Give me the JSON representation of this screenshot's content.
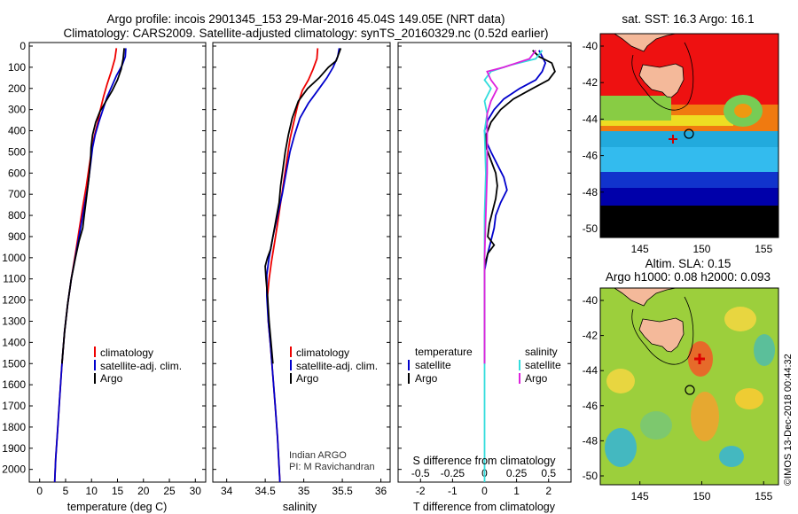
{
  "header": {
    "title_line1": "Argo profile: incois 2901345_153 29-Mar-2016 45.04S 149.05E (NRT data)",
    "title_line2": "Climatology: CARS2009. Satellite-adjusted climatology: synTS_20160329.nc (0.52d earlier)"
  },
  "colors": {
    "climatology": "#ee0000",
    "satellite": "#0000cc",
    "argo": "#000000",
    "satellite_salinity": "#33dddd",
    "argo_salinity_diff": "#dd22dd"
  },
  "panels": {
    "temperature": {
      "xlabel": "temperature (deg C)",
      "xticks": [
        "0",
        "5",
        "10",
        "15",
        "20",
        "25",
        "30"
      ],
      "legend": [
        "climatology",
        "satellite-adj. clim.",
        "Argo"
      ]
    },
    "salinity": {
      "xlabel": "salinity",
      "xticks": [
        "34",
        "34.5",
        "35",
        "35.5",
        "36"
      ],
      "legend": [
        "climatology",
        "satellite-adj. clim.",
        "Argo"
      ],
      "credit_line1": "Indian ARGO",
      "credit_line2": "PI: M Ravichandran"
    },
    "difference": {
      "xlabel": "T difference from climatology",
      "xlabel_top": "S difference from climatology",
      "xticks": [
        "-2",
        "-1",
        "0",
        "1",
        "2"
      ],
      "xticks_s": [
        "-0.5",
        "-0.25",
        "0",
        "0.25",
        "0.5"
      ],
      "legend_t_title": "temperature",
      "legend_t": [
        "satellite",
        "Argo"
      ],
      "legend_s_title": "salinity",
      "legend_s": [
        "satellite",
        "Argo"
      ]
    }
  },
  "y_axis": {
    "ticks": [
      "0",
      "100",
      "200",
      "300",
      "400",
      "500",
      "600",
      "700",
      "800",
      "900",
      "1000",
      "1100",
      "1200",
      "1300",
      "1400",
      "1500",
      "1600",
      "1700",
      "1800",
      "1900",
      "2000"
    ]
  },
  "maps": {
    "sst": {
      "title": "sat. SST: 16.3 Argo: 16.1",
      "yticks": [
        "-40",
        "-42",
        "-44",
        "-46",
        "-48",
        "-50"
      ],
      "xticks": [
        "145",
        "150",
        "155"
      ]
    },
    "sla": {
      "title_line1": "Altim. SLA: 0.15",
      "title_line2": "Argo h1000: 0.08 h2000: 0.093",
      "yticks": [
        "-40",
        "-42",
        "-44",
        "-46",
        "-48",
        "-50"
      ],
      "xticks": [
        "145",
        "150",
        "155"
      ]
    }
  },
  "watermark": "©IMOS 13-Dec-2018 00:44:32",
  "chart_data": [
    {
      "type": "line",
      "title": "",
      "xlabel": "temperature (deg C)",
      "ylabel": "",
      "xlim": [
        -2,
        32
      ],
      "ylim": [
        2060,
        0
      ],
      "series": [
        {
          "name": "climatology",
          "color": "#ee0000",
          "points": [
            [
              14.8,
              10
            ],
            [
              14.5,
              60
            ],
            [
              13.8,
              120
            ],
            [
              13.0,
              180
            ],
            [
              12.3,
              240
            ],
            [
              11.7,
              300
            ],
            [
              11.2,
              360
            ],
            [
              10.6,
              420
            ],
            [
              10.1,
              480
            ],
            [
              9.6,
              560
            ],
            [
              9.0,
              660
            ],
            [
              8.3,
              760
            ],
            [
              7.6,
              870
            ],
            [
              6.9,
              980
            ],
            [
              6.1,
              1100
            ],
            [
              5.4,
              1220
            ],
            [
              4.8,
              1350
            ],
            [
              4.3,
              1500
            ],
            [
              3.9,
              1650
            ],
            [
              3.5,
              1800
            ],
            [
              3.1,
              1950
            ],
            [
              2.9,
              2060
            ]
          ]
        },
        {
          "name": "satellite-adj. clim.",
          "color": "#0000cc",
          "points": [
            [
              16.6,
              10
            ],
            [
              16.5,
              50
            ],
            [
              15.9,
              90
            ],
            [
              14.8,
              140
            ],
            [
              13.9,
              190
            ],
            [
              13.0,
              240
            ],
            [
              12.2,
              300
            ],
            [
              11.4,
              360
            ],
            [
              10.7,
              420
            ],
            [
              10.2,
              480
            ],
            [
              9.8,
              560
            ],
            [
              9.3,
              660
            ],
            [
              8.6,
              760
            ],
            [
              7.8,
              870
            ],
            [
              7.0,
              980
            ],
            [
              6.1,
              1100
            ],
            [
              5.4,
              1220
            ],
            [
              4.8,
              1350
            ],
            [
              4.3,
              1500
            ],
            [
              3.9,
              1650
            ],
            [
              3.5,
              1800
            ],
            [
              3.1,
              1950
            ],
            [
              2.9,
              2060
            ]
          ]
        },
        {
          "name": "Argo",
          "color": "#000000",
          "points": [
            [
              16.3,
              10
            ],
            [
              16.1,
              60
            ],
            [
              15.7,
              110
            ],
            [
              15.0,
              160
            ],
            [
              14.0,
              210
            ],
            [
              12.8,
              260
            ],
            [
              11.6,
              310
            ],
            [
              10.8,
              360
            ],
            [
              10.2,
              420
            ],
            [
              9.9,
              480
            ],
            [
              9.8,
              540
            ],
            [
              9.5,
              620
            ],
            [
              9.0,
              720
            ],
            [
              8.6,
              800
            ],
            [
              8.3,
              860
            ],
            [
              7.6,
              920
            ],
            [
              6.9,
              1000
            ],
            [
              6.1,
              1100
            ],
            [
              5.4,
              1220
            ],
            [
              4.8,
              1350
            ],
            [
              4.3,
              1500
            ]
          ]
        }
      ]
    },
    {
      "type": "line",
      "title": "",
      "xlabel": "salinity",
      "ylabel": "",
      "xlim": [
        33.82,
        36.12
      ],
      "ylim": [
        2060,
        0
      ],
      "series": [
        {
          "name": "climatology",
          "color": "#ee0000",
          "points": [
            [
              35.18,
              10
            ],
            [
              35.17,
              60
            ],
            [
              35.12,
              110
            ],
            [
              35.06,
              160
            ],
            [
              34.98,
              210
            ],
            [
              34.92,
              280
            ],
            [
              34.87,
              360
            ],
            [
              34.82,
              440
            ],
            [
              34.78,
              540
            ],
            [
              34.74,
              640
            ],
            [
              34.7,
              740
            ],
            [
              34.66,
              840
            ],
            [
              34.62,
              930
            ],
            [
              34.58,
              1020
            ],
            [
              34.55,
              1100
            ],
            [
              34.53,
              1180
            ],
            [
              34.54,
              1300
            ],
            [
              34.57,
              1420
            ],
            [
              34.6,
              1560
            ],
            [
              34.63,
              1700
            ],
            [
              34.66,
              1850
            ],
            [
              34.69,
              2060
            ]
          ]
        },
        {
          "name": "satellite-adj. clim.",
          "color": "#0000cc",
          "points": [
            [
              35.46,
              10
            ],
            [
              35.44,
              50
            ],
            [
              35.38,
              100
            ],
            [
              35.3,
              150
            ],
            [
              35.18,
              210
            ],
            [
              35.06,
              270
            ],
            [
              34.95,
              340
            ],
            [
              34.88,
              420
            ],
            [
              34.82,
              500
            ],
            [
              34.77,
              600
            ],
            [
              34.72,
              700
            ],
            [
              34.66,
              800
            ],
            [
              34.6,
              900
            ],
            [
              34.55,
              1000
            ],
            [
              34.52,
              1080
            ],
            [
              34.52,
              1180
            ],
            [
              34.54,
              1300
            ],
            [
              34.57,
              1420
            ],
            [
              34.6,
              1560
            ],
            [
              34.63,
              1700
            ],
            [
              34.66,
              1850
            ],
            [
              34.69,
              2060
            ]
          ]
        },
        {
          "name": "Argo",
          "color": "#000000",
          "points": [
            [
              35.48,
              10
            ],
            [
              35.45,
              40
            ],
            [
              35.42,
              70
            ],
            [
              35.32,
              100
            ],
            [
              35.2,
              150
            ],
            [
              35.05,
              200
            ],
            [
              34.93,
              260
            ],
            [
              34.85,
              340
            ],
            [
              34.8,
              420
            ],
            [
              34.76,
              500
            ],
            [
              34.73,
              580
            ],
            [
              34.7,
              660
            ],
            [
              34.68,
              740
            ],
            [
              34.64,
              820
            ],
            [
              34.6,
              900
            ],
            [
              34.57,
              960
            ],
            [
              34.53,
              1000
            ],
            [
              34.5,
              1040
            ],
            [
              34.51,
              1100
            ],
            [
              34.53,
              1180
            ],
            [
              34.55,
              1300
            ],
            [
              34.58,
              1420
            ],
            [
              34.6,
              1500
            ]
          ]
        }
      ]
    },
    {
      "type": "line",
      "title": "",
      "xlabel": "T difference from climatology",
      "xlabel_top": "S difference from climatology",
      "ylabel": "",
      "xlim": [
        -2.7,
        2.7
      ],
      "xlim_s": [
        -0.675,
        0.675
      ],
      "ylim": [
        2060,
        0
      ],
      "series": [
        {
          "name": "temperature satellite",
          "color": "#0000cc",
          "axis": "T",
          "points": [
            [
              1.7,
              20
            ],
            [
              1.8,
              50
            ],
            [
              1.9,
              80
            ],
            [
              1.8,
              120
            ],
            [
              1.6,
              160
            ],
            [
              1.1,
              200
            ],
            [
              0.6,
              250
            ],
            [
              0.3,
              300
            ],
            [
              0.1,
              350
            ],
            [
              0.0,
              400
            ],
            [
              0.05,
              450
            ],
            [
              0.2,
              500
            ],
            [
              0.4,
              560
            ],
            [
              0.6,
              620
            ],
            [
              0.7,
              680
            ],
            [
              0.5,
              740
            ],
            [
              0.35,
              800
            ],
            [
              0.3,
              860
            ],
            [
              0.2,
              920
            ],
            [
              0.1,
              980
            ],
            [
              0.0,
              1060
            ],
            [
              0.0,
              1200
            ],
            [
              0.0,
              1500
            ]
          ]
        },
        {
          "name": "temperature Argo",
          "color": "#000000",
          "axis": "T",
          "points": [
            [
              1.5,
              20
            ],
            [
              1.7,
              50
            ],
            [
              2.1,
              80
            ],
            [
              2.2,
              120
            ],
            [
              2.0,
              160
            ],
            [
              1.5,
              200
            ],
            [
              0.9,
              250
            ],
            [
              0.5,
              300
            ],
            [
              0.2,
              360
            ],
            [
              0.05,
              420
            ],
            [
              0.05,
              480
            ],
            [
              0.2,
              540
            ],
            [
              0.35,
              600
            ],
            [
              0.4,
              660
            ],
            [
              0.35,
              720
            ],
            [
              0.25,
              780
            ],
            [
              0.15,
              840
            ],
            [
              0.1,
              900
            ],
            [
              0.3,
              940
            ],
            [
              0.1,
              980
            ],
            [
              0.0,
              1040
            ],
            [
              0.0,
              1200
            ],
            [
              0.0,
              1500
            ]
          ]
        },
        {
          "name": "salinity satellite",
          "color": "#33dddd",
          "axis": "S",
          "points": [
            [
              0.45,
              20
            ],
            [
              0.4,
              60
            ],
            [
              0.2,
              90
            ],
            [
              0.05,
              120
            ],
            [
              0.0,
              160
            ],
            [
              0.05,
              200
            ],
            [
              0.0,
              260
            ],
            [
              0.02,
              320
            ],
            [
              0.0,
              400
            ],
            [
              0.01,
              600
            ],
            [
              0.0,
              800
            ],
            [
              0.0,
              1000
            ],
            [
              0.0,
              1400
            ],
            [
              0.0,
              1700
            ],
            [
              0.0,
              2060
            ]
          ]
        },
        {
          "name": "salinity Argo",
          "color": "#dd22dd",
          "axis": "S",
          "points": [
            [
              0.4,
              20
            ],
            [
              0.35,
              60
            ],
            [
              0.15,
              100
            ],
            [
              0.02,
              120
            ],
            [
              0.05,
              160
            ],
            [
              0.1,
              200
            ],
            [
              0.05,
              260
            ],
            [
              0.02,
              320
            ],
            [
              0.02,
              400
            ],
            [
              0.02,
              600
            ],
            [
              0.01,
              800
            ],
            [
              0.0,
              1000
            ],
            [
              0.0,
              1200
            ],
            [
              0.0,
              1500
            ]
          ]
        }
      ]
    }
  ]
}
